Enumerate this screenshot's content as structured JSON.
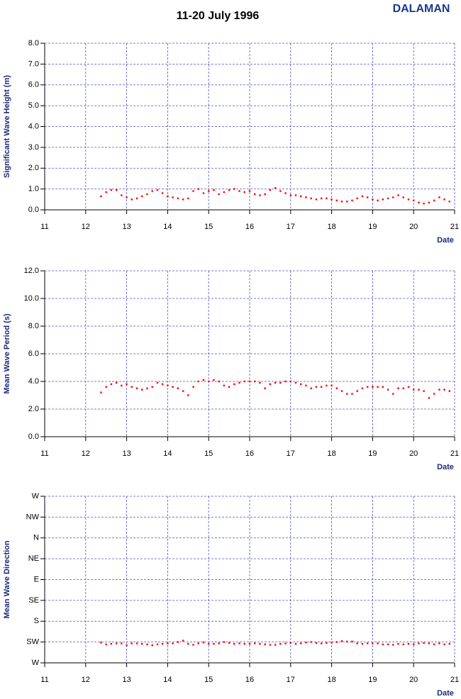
{
  "title": "11-20 July 1996",
  "station": "DALAMAN",
  "chart_data": [
    {
      "type": "scatter",
      "ylabel": "Significant Wave Height (m)",
      "xlabel": "Date",
      "color": "#ff0000",
      "grid": true,
      "xlim": [
        11,
        21
      ],
      "xticks": [
        11,
        12,
        13,
        14,
        15,
        16,
        17,
        18,
        19,
        20,
        21
      ],
      "ylim": [
        0,
        8
      ],
      "yticks": [
        {
          "value": 0,
          "label": "0.0"
        },
        {
          "value": 1,
          "label": "1.0"
        },
        {
          "value": 2,
          "label": "2.0"
        },
        {
          "value": 3,
          "label": "3.0"
        },
        {
          "value": 4,
          "label": "4.0"
        },
        {
          "value": 5,
          "label": "5.0"
        },
        {
          "value": 6,
          "label": "6.0"
        },
        {
          "value": 7,
          "label": "7.0"
        },
        {
          "value": 8,
          "label": "8.0"
        }
      ],
      "x": [
        12.375,
        12.5,
        12.625,
        12.75,
        12.875,
        13,
        13.125,
        13.25,
        13.375,
        13.5,
        13.625,
        13.75,
        13.875,
        14,
        14.125,
        14.25,
        14.375,
        14.5,
        14.625,
        14.75,
        14.875,
        15,
        15.125,
        15.25,
        15.375,
        15.5,
        15.625,
        15.75,
        15.875,
        16,
        16.125,
        16.25,
        16.375,
        16.5,
        16.625,
        16.75,
        16.875,
        17,
        17.125,
        17.25,
        17.375,
        17.5,
        17.625,
        17.75,
        17.875,
        18,
        18.125,
        18.25,
        18.375,
        18.5,
        18.625,
        18.75,
        18.875,
        19,
        19.125,
        19.25,
        19.375,
        19.5,
        19.625,
        19.75,
        19.875,
        20,
        20.125,
        20.25,
        20.375,
        20.5,
        20.625,
        20.75,
        20.875
      ],
      "values": [
        0.65,
        0.85,
        0.95,
        0.95,
        0.7,
        0.6,
        0.5,
        0.55,
        0.65,
        0.75,
        0.9,
        0.95,
        0.8,
        0.65,
        0.6,
        0.55,
        0.5,
        0.55,
        0.9,
        1.0,
        0.8,
        0.9,
        0.95,
        0.75,
        0.85,
        0.95,
        1.0,
        0.9,
        0.85,
        0.9,
        0.75,
        0.7,
        0.75,
        0.95,
        1.05,
        0.9,
        0.8,
        0.7,
        0.7,
        0.65,
        0.6,
        0.55,
        0.5,
        0.55,
        0.55,
        0.5,
        0.45,
        0.4,
        0.4,
        0.45,
        0.55,
        0.65,
        0.6,
        0.5,
        0.45,
        0.5,
        0.55,
        0.6,
        0.7,
        0.6,
        0.5,
        0.45,
        0.35,
        0.3,
        0.35,
        0.45,
        0.6,
        0.5,
        0.4
      ]
    },
    {
      "type": "scatter",
      "ylabel": "Mean Wave Period (s)",
      "xlabel": "Date",
      "color": "#ff0000",
      "grid": true,
      "xlim": [
        11,
        21
      ],
      "xticks": [
        11,
        12,
        13,
        14,
        15,
        16,
        17,
        18,
        19,
        20,
        21
      ],
      "ylim": [
        0,
        12
      ],
      "yticks": [
        {
          "value": 0,
          "label": "0.0"
        },
        {
          "value": 2,
          "label": "2.0"
        },
        {
          "value": 4,
          "label": "4.0"
        },
        {
          "value": 6,
          "label": "6.0"
        },
        {
          "value": 8,
          "label": "8.0"
        },
        {
          "value": 10,
          "label": "10.0"
        },
        {
          "value": 12,
          "label": "12.0"
        }
      ],
      "x": [
        12.375,
        12.5,
        12.625,
        12.75,
        12.875,
        13,
        13.125,
        13.25,
        13.375,
        13.5,
        13.625,
        13.75,
        13.875,
        14,
        14.125,
        14.25,
        14.375,
        14.5,
        14.625,
        14.75,
        14.875,
        15,
        15.125,
        15.25,
        15.375,
        15.5,
        15.625,
        15.75,
        15.875,
        16,
        16.125,
        16.25,
        16.375,
        16.5,
        16.625,
        16.75,
        16.875,
        17,
        17.125,
        17.25,
        17.375,
        17.5,
        17.625,
        17.75,
        17.875,
        18,
        18.125,
        18.25,
        18.375,
        18.5,
        18.625,
        18.75,
        18.875,
        19,
        19.125,
        19.25,
        19.375,
        19.5,
        19.625,
        19.75,
        19.875,
        20,
        20.125,
        20.25,
        20.375,
        20.5,
        20.625,
        20.75,
        20.875
      ],
      "values": [
        3.2,
        3.6,
        3.8,
        3.9,
        3.7,
        3.8,
        3.6,
        3.5,
        3.4,
        3.5,
        3.6,
        3.9,
        3.8,
        3.7,
        3.6,
        3.5,
        3.3,
        3.0,
        3.6,
        4.0,
        4.1,
        4.0,
        4.1,
        4.0,
        3.7,
        3.6,
        3.8,
        3.9,
        4.0,
        4.0,
        4.0,
        3.9,
        3.5,
        3.8,
        3.9,
        3.9,
        4.0,
        4.0,
        3.9,
        3.8,
        3.7,
        3.5,
        3.6,
        3.6,
        3.7,
        3.7,
        3.5,
        3.3,
        3.1,
        3.1,
        3.3,
        3.5,
        3.6,
        3.6,
        3.6,
        3.6,
        3.4,
        3.1,
        3.5,
        3.5,
        3.6,
        3.4,
        3.4,
        3.3,
        2.8,
        3.1,
        3.4,
        3.4,
        3.3
      ]
    },
    {
      "type": "scatter",
      "ylabel": "Mean Wave Direction",
      "xlabel": "Date",
      "color": "#ff0000",
      "grid": true,
      "xlim": [
        11,
        21
      ],
      "xticks": [
        11,
        12,
        13,
        14,
        15,
        16,
        17,
        18,
        19,
        20,
        21
      ],
      "ylim": [
        270,
        -90
      ],
      "yticks": [
        {
          "value": 270,
          "label": "W"
        },
        {
          "value": 225,
          "label": "SW"
        },
        {
          "value": 180,
          "label": "S"
        },
        {
          "value": 135,
          "label": "SE"
        },
        {
          "value": 90,
          "label": "E"
        },
        {
          "value": 45,
          "label": "NE"
        },
        {
          "value": 0,
          "label": "N"
        },
        {
          "value": -45,
          "label": "NW"
        },
        {
          "value": -90,
          "label": "W"
        }
      ],
      "x": [
        12.375,
        12.5,
        12.625,
        12.75,
        12.875,
        13,
        13.125,
        13.25,
        13.375,
        13.5,
        13.625,
        13.75,
        13.875,
        14,
        14.125,
        14.25,
        14.375,
        14.5,
        14.625,
        14.75,
        14.875,
        15,
        15.125,
        15.25,
        15.375,
        15.5,
        15.625,
        15.75,
        15.875,
        16,
        16.125,
        16.25,
        16.375,
        16.5,
        16.625,
        16.75,
        16.875,
        17,
        17.125,
        17.25,
        17.375,
        17.5,
        17.625,
        17.75,
        17.875,
        18,
        18.125,
        18.25,
        18.375,
        18.5,
        18.625,
        18.75,
        18.875,
        19,
        19.125,
        19.25,
        19.375,
        19.5,
        19.625,
        19.75,
        19.875,
        20,
        20.125,
        20.25,
        20.375,
        20.5,
        20.625,
        20.75,
        20.875
      ],
      "values": [
        226,
        230,
        229,
        228,
        228,
        232,
        228,
        228,
        229,
        230,
        232,
        230,
        229,
        228,
        228,
        225,
        222,
        229,
        231,
        228,
        226,
        229,
        229,
        228,
        225,
        227,
        229,
        228,
        229,
        229,
        228,
        229,
        230,
        231,
        231,
        229,
        228,
        227,
        229,
        228,
        226,
        225,
        227,
        228,
        227,
        226,
        225,
        223,
        224,
        224,
        228,
        229,
        228,
        228,
        228,
        230,
        230,
        231,
        229,
        230,
        229,
        230,
        228,
        227,
        228,
        230,
        228,
        230,
        229
      ]
    }
  ]
}
